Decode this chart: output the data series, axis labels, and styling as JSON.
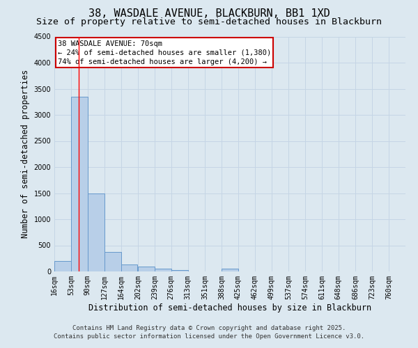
{
  "title": "38, WASDALE AVENUE, BLACKBURN, BB1 1XD",
  "subtitle": "Size of property relative to semi-detached houses in Blackburn",
  "xlabel": "Distribution of semi-detached houses by size in Blackburn",
  "ylabel": "Number of semi-detached properties",
  "footer_line1": "Contains HM Land Registry data © Crown copyright and database right 2025.",
  "footer_line2": "Contains public sector information licensed under the Open Government Licence v3.0.",
  "bin_labels": [
    "16sqm",
    "53sqm",
    "90sqm",
    "127sqm",
    "164sqm",
    "202sqm",
    "239sqm",
    "276sqm",
    "313sqm",
    "351sqm",
    "388sqm",
    "425sqm",
    "462sqm",
    "499sqm",
    "537sqm",
    "574sqm",
    "611sqm",
    "648sqm",
    "686sqm",
    "723sqm",
    "760sqm"
  ],
  "bin_edges": [
    16,
    53,
    90,
    127,
    164,
    202,
    239,
    276,
    313,
    351,
    388,
    425,
    462,
    499,
    537,
    574,
    611,
    648,
    686,
    723,
    760
  ],
  "bin_width": 37,
  "bar_heights": [
    200,
    3350,
    1500,
    380,
    140,
    90,
    50,
    30,
    5,
    5,
    50,
    5,
    0,
    0,
    0,
    0,
    0,
    0,
    0,
    0
  ],
  "bar_color": "#b8cfe8",
  "bar_edge_color": "#6699cc",
  "grid_color": "#c5d5e5",
  "background_color": "#dce8f0",
  "red_line_x": 70,
  "annotation_title": "38 WASDALE AVENUE: 70sqm",
  "annotation_line1": "← 24% of semi-detached houses are smaller (1,380)",
  "annotation_line2": "74% of semi-detached houses are larger (4,200) →",
  "annotation_box_color": "#ffffff",
  "annotation_border_color": "#cc0000",
  "ylim": [
    0,
    4500
  ],
  "yticks": [
    0,
    500,
    1000,
    1500,
    2000,
    2500,
    3000,
    3500,
    4000,
    4500
  ],
  "title_fontsize": 11,
  "subtitle_fontsize": 9.5,
  "axis_label_fontsize": 8.5,
  "tick_fontsize": 7,
  "annotation_fontsize": 7.5,
  "footer_fontsize": 6.5
}
